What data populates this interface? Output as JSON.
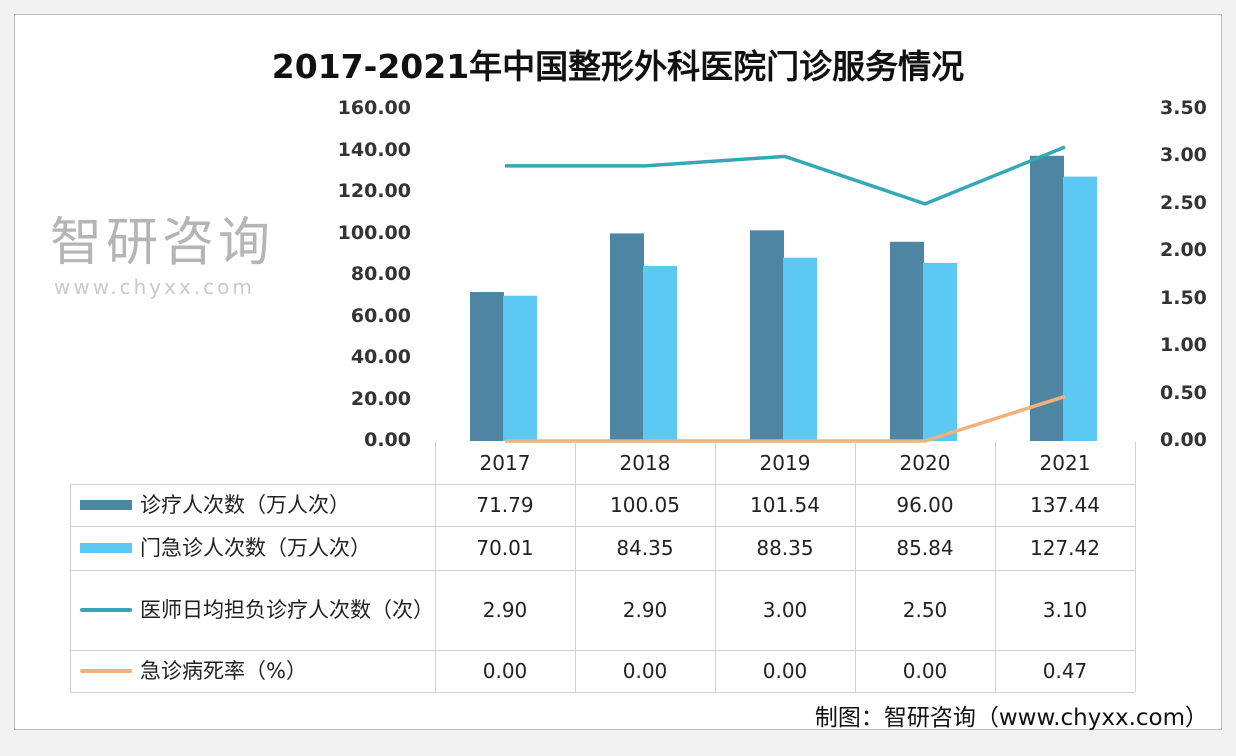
{
  "chart_data": {
    "type": "bar",
    "title": "2017-2021年中国整形外科医院门诊服务情况",
    "categories": [
      "2017",
      "2018",
      "2019",
      "2020",
      "2021"
    ],
    "y_left": {
      "ylim": [
        0,
        160
      ],
      "ticks": [
        "0.00",
        "20.00",
        "40.00",
        "60.00",
        "80.00",
        "100.00",
        "120.00",
        "140.00",
        "160.00"
      ]
    },
    "y_right": {
      "ylim": [
        0,
        3.5
      ],
      "ticks": [
        "0.00",
        "0.50",
        "1.00",
        "1.50",
        "2.00",
        "2.50",
        "3.00",
        "3.50"
      ]
    },
    "series": [
      {
        "name": "诊疗人次数（万人次）",
        "type": "bar",
        "axis": "left",
        "color": "#4e85a3",
        "values": [
          71.79,
          100.05,
          101.54,
          96.0,
          137.44
        ],
        "labels": [
          "71.79",
          "100.05",
          "101.54",
          "96.00",
          "137.44"
        ]
      },
      {
        "name": "门急诊人次数（万人次）",
        "type": "bar",
        "axis": "left",
        "color": "#5cc9f5",
        "values": [
          70.01,
          84.35,
          88.35,
          85.84,
          127.42
        ],
        "labels": [
          "70.01",
          "84.35",
          "88.35",
          "85.84",
          "127.42"
        ]
      },
      {
        "name": "医师日均担负诊疗人次数（次）",
        "type": "line",
        "axis": "right",
        "color": "#35a8b6",
        "values": [
          2.9,
          2.9,
          3.0,
          2.5,
          3.1
        ],
        "labels": [
          "2.90",
          "2.90",
          "3.00",
          "2.50",
          "3.10"
        ]
      },
      {
        "name": "急诊病死率（%）",
        "type": "line",
        "axis": "right",
        "color": "#f0b27a",
        "values": [
          0.0,
          0.0,
          0.0,
          0.0,
          0.47
        ],
        "labels": [
          "0.00",
          "0.00",
          "0.00",
          "0.00",
          "0.47"
        ]
      }
    ],
    "legend": "data-table-left"
  },
  "watermark": "智研咨询",
  "watermark_url": "www.chyxx.com",
  "source": "制图：智研咨询（www.chyxx.com）"
}
